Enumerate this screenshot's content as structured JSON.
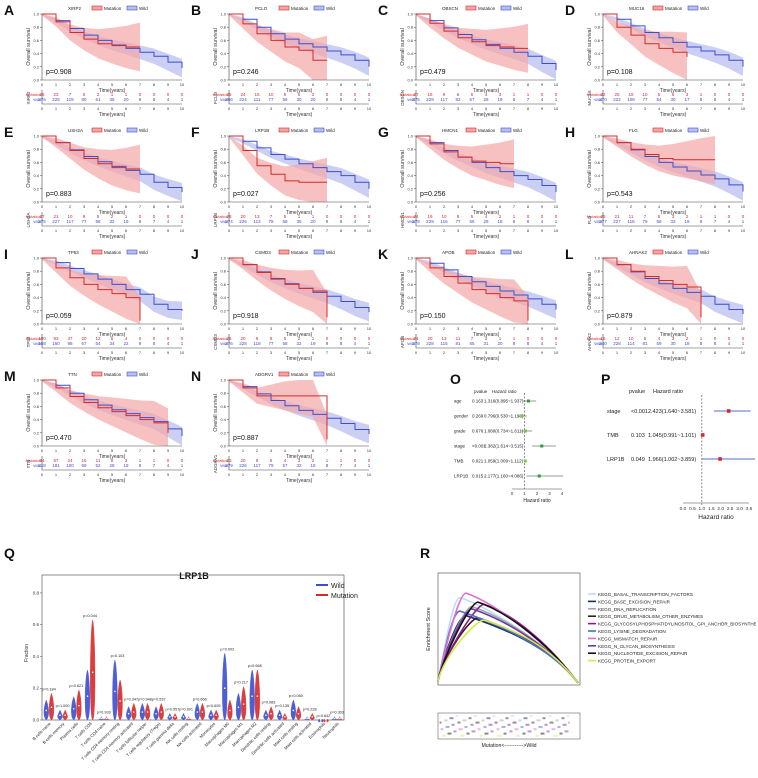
{
  "figure": {
    "legend_mutation": "Mutation",
    "legend_wild": "Wild",
    "y_label": "Overall survival",
    "x_label": "Time(years)",
    "row_mut": "Mutation",
    "row_wild": "Wild"
  },
  "colors": {
    "mutation": "#d62a2a",
    "wild": "#3a4fcf",
    "mutation_band": "#f4a6a6",
    "wild_band": "#b9bff0"
  },
  "km_panels": [
    {
      "label": "A",
      "gene": "XIRP2",
      "pvalue": "p=0.908",
      "mut": "26 23 7 5 2 1 1 0 0 0 0",
      "wild": "276 225 119 80 61 35 20 9 8 4 1",
      "mcurve": [
        1,
        0.88,
        0.72,
        0.62,
        0.55,
        0.52,
        0.5,
        0.5
      ],
      "wcurve": [
        1,
        0.9,
        0.78,
        0.68,
        0.6,
        0.53,
        0.48,
        0.42,
        0.36,
        0.27,
        0.18
      ]
    },
    {
      "label": "B",
      "gene": "PCLO",
      "pvalue": "p=0.246",
      "mut": "35 24 15 10 6 5 2 0 0 0 0",
      "wild": "266 224 111 77 56 30 20 9 8 4 1",
      "mcurve": [
        1,
        0.85,
        0.7,
        0.6,
        0.5,
        0.45,
        0.3,
        0.3
      ],
      "wcurve": [
        1,
        0.92,
        0.8,
        0.7,
        0.62,
        0.55,
        0.5,
        0.44,
        0.38,
        0.3,
        0.2
      ]
    },
    {
      "label": "C",
      "gene": "OBSCN",
      "pvalue": "p=0.479",
      "mut": "27 18 9 6 5 4 3 1 1 0 0",
      "wild": "275 229 117 82 57 28 18 8 7 4 1",
      "mcurve": [
        1,
        0.86,
        0.74,
        0.64,
        0.58,
        0.52,
        0.5,
        0.48,
        0.48
      ],
      "wcurve": [
        1,
        0.9,
        0.79,
        0.69,
        0.61,
        0.54,
        0.48,
        0.42,
        0.36,
        0.25,
        0.15
      ]
    },
    {
      "label": "D",
      "gene": "MUC16",
      "pvalue": "p=0.108",
      "mut": "32 25 18 10 5 6 3 1 0 0 0",
      "wild": "270 222 108 77 54 30 17 8 8 4 1",
      "mcurve": [
        1,
        0.8,
        0.68,
        0.55,
        0.48,
        0.42,
        0.35
      ],
      "wcurve": [
        1,
        0.92,
        0.82,
        0.72,
        0.64,
        0.57,
        0.5,
        0.44,
        0.38,
        0.3,
        0.2
      ]
    },
    {
      "label": "E",
      "gene": "USH2A",
      "pvalue": "p=0.883",
      "mut": "27 21 10 8 5 2 1 0 0 0 0",
      "wild": "275 227 117 77 58 32 19 8 7 4 1",
      "mcurve": [
        1,
        0.9,
        0.78,
        0.66,
        0.58,
        0.52,
        0.5,
        0.5
      ],
      "wcurve": [
        1,
        0.9,
        0.79,
        0.69,
        0.61,
        0.54,
        0.48,
        0.42,
        0.3,
        0.22,
        0.15
      ]
    },
    {
      "label": "F",
      "gene": "LRP1B",
      "pvalue": "p=0.027",
      "mut": "28 20 13 7 5 1 1 0 0 0 0",
      "wild": "274 226 113 79 58 35 20 9 8 4 1",
      "mcurve": [
        1,
        0.78,
        0.55,
        0.42,
        0.32,
        0.3,
        0.3,
        0.3
      ],
      "wcurve": [
        1,
        0.92,
        0.82,
        0.72,
        0.65,
        0.58,
        0.52,
        0.46,
        0.4,
        0.3,
        0.2
      ]
    },
    {
      "label": "G",
      "gene": "HMCN1",
      "pvalue": "p=0.256",
      "mut": "24 19 10 8 5 4 2 1 0 0 0",
      "wild": "278 229 116 77 56 28 18 8 8 4 1",
      "mcurve": [
        1,
        0.88,
        0.76,
        0.68,
        0.62,
        0.6,
        0.58,
        0.58
      ],
      "wcurve": [
        1,
        0.9,
        0.78,
        0.68,
        0.6,
        0.52,
        0.46,
        0.4,
        0.34,
        0.25,
        0.15
      ]
    },
    {
      "label": "H",
      "gene": "FLG",
      "pvalue": "p=0.543",
      "mut": "25 21 11 7 5 3 2 1 1 0 0",
      "wild": "277 227 118 79 58 33 19 8 7 4 1",
      "mcurve": [
        1,
        0.9,
        0.8,
        0.72,
        0.66,
        0.64,
        0.64,
        0.64,
        0.64
      ],
      "wcurve": [
        1,
        0.9,
        0.79,
        0.69,
        0.6,
        0.53,
        0.47,
        0.41,
        0.35,
        0.26,
        0.16
      ]
    },
    {
      "label": "I",
      "gene": "TP53",
      "pvalue": "p=0.059",
      "mut": "100 83 37 20 12 6 4 0 0 0 0",
      "wild": "168 160 98 67 54 34 22 9 8 4 1",
      "mcurve": [
        1,
        0.85,
        0.7,
        0.6,
        0.52,
        0.46,
        0.4,
        0.05
      ],
      "wcurve": [
        1,
        0.93,
        0.84,
        0.76,
        0.68,
        0.6,
        0.52,
        0.45,
        0.3,
        0.22,
        0.2
      ]
    },
    {
      "label": "J",
      "gene": "CSMD3",
      "pvalue": "p=0.918",
      "mut": "26 20 9 8 5 2 1 0 0 0 0",
      "wild": "276 228 118 77 58 32 19 9 8 4 1",
      "mcurve": [
        1,
        0.9,
        0.78,
        0.68,
        0.6,
        0.54,
        0.5,
        0.1
      ],
      "wcurve": [
        1,
        0.9,
        0.79,
        0.69,
        0.61,
        0.54,
        0.48,
        0.42,
        0.34,
        0.25,
        0.18
      ]
    },
    {
      "label": "K",
      "gene": "APOB",
      "pvalue": "p=0.150",
      "mut": "24 20 13 11 7 3 1 1 0 0 0",
      "wild": "278 228 115 81 55 31 20 8 8 4 1",
      "mcurve": [
        1,
        0.85,
        0.72,
        0.62,
        0.52,
        0.46,
        0.4,
        0.35,
        0.05
      ],
      "wcurve": [
        1,
        0.92,
        0.82,
        0.72,
        0.64,
        0.57,
        0.5,
        0.44,
        0.38,
        0.3,
        0.22
      ]
    },
    {
      "label": "L",
      "gene": "AHNAK2",
      "pvalue": "p=0.879",
      "mut": "16 12 10 5 4 3 2 1 0 0 0",
      "wild": "240 228 114 81 59 30 18 8 8 4 1",
      "mcurve": [
        1,
        0.9,
        0.8,
        0.72,
        0.66,
        0.6,
        0.56,
        0.1
      ],
      "wcurve": [
        1,
        0.9,
        0.79,
        0.69,
        0.61,
        0.54,
        0.48,
        0.42,
        0.3,
        0.22,
        0.15
      ]
    },
    {
      "label": "M",
      "gene": "TTN",
      "pvalue": "p=0.470",
      "mut": "84 67 24 16 11 8 3 1 1 0 0",
      "wild": "218 181 100 69 52 28 18 8 7 4 1",
      "mcurve": [
        1,
        0.88,
        0.75,
        0.66,
        0.58,
        0.52,
        0.46,
        0.4,
        0.35,
        0.2
      ],
      "wcurve": [
        1,
        0.92,
        0.8,
        0.7,
        0.62,
        0.55,
        0.49,
        0.43,
        0.37,
        0.26,
        0.15
      ]
    },
    {
      "label": "N",
      "gene": "ADGRV1",
      "pvalue": "p=0.887",
      "mut": "23 20 9 6 4 3 2 1 1 0 0",
      "wild": "279 226 117 79 57 32 19 8 7 4 1",
      "mcurve": [
        1,
        0.88,
        0.76,
        0.76,
        0.76,
        0.76,
        0.76,
        0.1
      ],
      "wcurve": [
        1,
        0.9,
        0.79,
        0.69,
        0.61,
        0.54,
        0.48,
        0.42,
        0.34,
        0.25,
        0.18
      ]
    }
  ],
  "forest_O": {
    "label": "O",
    "col_p": "pvalue",
    "col_hr": "Hazard ratio",
    "xlabel": "Hazard ratio",
    "ticks": [
      "0",
      "1",
      "2",
      "3",
      "4"
    ],
    "rows": [
      {
        "name": "age",
        "p": "0.163",
        "hr": "1.316(0.895~1.937)",
        "v": 1.316,
        "lo": 0.895,
        "hi": 1.937
      },
      {
        "name": "gender",
        "p": "0.269",
        "hr": "0.796(0.530~1.193)",
        "v": 0.796,
        "lo": 0.53,
        "hi": 1.193
      },
      {
        "name": "grade",
        "p": "0.676",
        "hr": "1.080(0.734~1.611)",
        "v": 1.08,
        "lo": 0.734,
        "hi": 1.611
      },
      {
        "name": "stage",
        "p": "<0.001",
        "hr": "2.382(1.614~3.515)",
        "v": 2.382,
        "lo": 1.614,
        "hi": 3.515
      },
      {
        "name": "TMB",
        "p": "0.021",
        "hr": "1.059(1.009~1.112)",
        "v": 1.059,
        "lo": 1.009,
        "hi": 1.112
      },
      {
        "name": "LRP1B",
        "p": "0.015",
        "hr": "2.177(1.160~4.086)",
        "v": 2.177,
        "lo": 1.16,
        "hi": 4.086
      }
    ]
  },
  "forest_P": {
    "label": "P",
    "col_p": "pvalue",
    "col_hr": "Hazard ratio",
    "xlabel": "Hazard ratio",
    "ticks": [
      "0.0",
      "0.5",
      "1.0",
      "1.5",
      "2.0",
      "2.5",
      "3.0",
      "3.5"
    ],
    "rows": [
      {
        "name": "stage",
        "p": "<0.001",
        "hr": "2.423(1.640~3.581)",
        "v": 2.423,
        "lo": 1.64,
        "hi": 3.581
      },
      {
        "name": "TMB",
        "p": "0.103",
        "hr": "1.045(0.991~1.101)",
        "v": 1.045,
        "lo": 0.991,
        "hi": 1.101
      },
      {
        "name": "LRP1B",
        "p": "0.049",
        "hr": "1.966(1.002~3.859)",
        "v": 1.966,
        "lo": 1.002,
        "hi": 3.859
      }
    ]
  },
  "violin_Q": {
    "label": "Q",
    "title": "LRP1B",
    "ylabel": "Fraction",
    "legend": [
      "Wild",
      "Mutation"
    ],
    "yticks": [
      "0.0",
      "0.2",
      "0.4",
      "0.6",
      "0.8"
    ],
    "cells": [
      {
        "name": "B cells naive",
        "p": "p=0.184",
        "w": 0.06,
        "m": 0.08
      },
      {
        "name": "B cells memory",
        "p": "p=1.000",
        "w": 0.03,
        "m": 0.03
      },
      {
        "name": "Plasma cells",
        "p": "p=0.621",
        "w": 0.07,
        "m": 0.09
      },
      {
        "name": "T cells CD8",
        "p": "p=0.044",
        "w": 0.15,
        "m": 0.3
      },
      {
        "name": "T cells CD4 naive",
        "p": "p=0.933",
        "w": 0.01,
        "m": 0.01
      },
      {
        "name": "T cells CD4 memory resting",
        "p": "p=0.103",
        "w": 0.18,
        "m": 0.12
      },
      {
        "name": "T cells CD4 memory activated",
        "p": "p=0.347",
        "w": 0.04,
        "m": 0.05
      },
      {
        "name": "T cells follicular helper",
        "p": "p=0.948",
        "w": 0.05,
        "m": 0.05
      },
      {
        "name": "T cells regulatory (Tregs)",
        "p": "p=0.537",
        "w": 0.04,
        "m": 0.05
      },
      {
        "name": "T cells gamma delta",
        "p": "p=0.957",
        "w": 0.02,
        "m": 0.02
      },
      {
        "name": "NK cells resting",
        "p": "p=0.001",
        "w": 0.02,
        "m": 0.01
      },
      {
        "name": "NK cells activated",
        "p": "p=0.666",
        "w": 0.05,
        "m": 0.05
      },
      {
        "name": "Monocytes",
        "p": "p=0.605",
        "w": 0.03,
        "m": 0.03
      },
      {
        "name": "Macrophages M0",
        "p": "p=0.002",
        "w": 0.2,
        "m": 0.06
      },
      {
        "name": "Macrophages M1",
        "p": "p=0.217",
        "w": 0.08,
        "m": 0.1
      },
      {
        "name": "Macrophages M2",
        "p": "p=0.668",
        "w": 0.15,
        "m": 0.15
      },
      {
        "name": "Dendritic cells resting",
        "p": "p=0.083",
        "w": 0.03,
        "m": 0.04
      },
      {
        "name": "Dendritic cells activated",
        "p": "p=0.135",
        "w": 0.03,
        "m": 0.02
      },
      {
        "name": "Mast cells resting",
        "p": "p=0.060",
        "w": 0.06,
        "m": 0.04
      },
      {
        "name": "Mast cells activated",
        "p": "p=0.228",
        "w": 0.01,
        "m": 0.02
      },
      {
        "name": "Eosinophils",
        "p": "p=0.642",
        "w": 0.0,
        "m": 0.0
      },
      {
        "name": "Neutrophils",
        "p": "p=0.303",
        "w": 0.01,
        "m": 0.01
      }
    ]
  },
  "gsea_R": {
    "label": "R",
    "ylabel": "Enrichment Score",
    "xlabel": "Mutation<----------->Wild",
    "sets": [
      {
        "name": "KEGG_BASAL_TRANSCRIPTION_FACTORS",
        "color": "#b7e0f2",
        "peak": 0.78
      },
      {
        "name": "KEGG_BASE_EXCISION_REPAIR",
        "color": "#1f2d6b",
        "peak": 0.62
      },
      {
        "name": "KEGG_DNA_REPLICATION",
        "color": "#a6a6a6",
        "peak": 0.7
      },
      {
        "name": "KEGG_DRUG_METABOLISM_OTHER_ENZYMES",
        "color": "#3a1a1a",
        "peak": 0.6
      },
      {
        "name": "KEGG_GLYCOSYLPHOSPHATIDYLINOSITOL_GPI_ANCHOR_BIOSYNTHESIS",
        "color": "#8e1a8e",
        "peak": 0.72
      },
      {
        "name": "KEGG_LYSINE_DEGRADATION",
        "color": "#4a6fc9",
        "peak": 0.66
      },
      {
        "name": "KEGG_MISMATCH_REPAIR",
        "color": "#e56ad4",
        "peak": 0.82
      },
      {
        "name": "KEGG_N_GLYCAN_BIOSYNTHESIS",
        "color": "#6b3aa8",
        "peak": 0.68
      },
      {
        "name": "KEGG_NUCLEOTIDE_EXCISION_REPAIR",
        "color": "#111111",
        "peak": 0.74
      },
      {
        "name": "KEGG_PROTEIN_EXPORT",
        "color": "#d7e84a",
        "peak": 0.58
      }
    ]
  }
}
